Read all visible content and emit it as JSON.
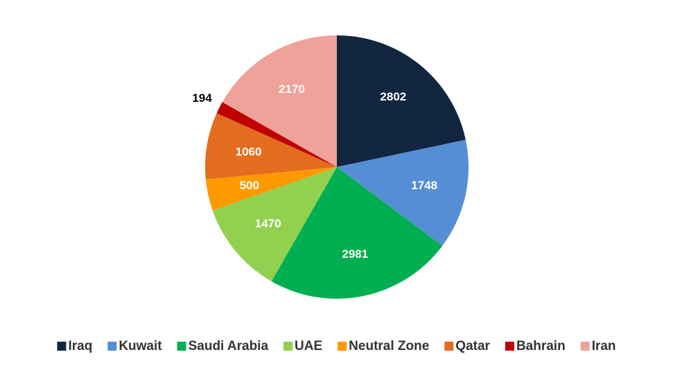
{
  "chart_data": {
    "type": "pie",
    "categories": [
      "Iraq",
      "Kuwait",
      "Saudi Arabia",
      "UAE",
      "Neutral Zone",
      "Qatar",
      "Bahrain",
      "Iran"
    ],
    "values": [
      2802,
      1748,
      2981,
      1470,
      500,
      1060,
      194,
      2170
    ],
    "colors": [
      "#12263f",
      "#558ed5",
      "#00b050",
      "#92d050",
      "#ff9900",
      "#e46c1f",
      "#c00000",
      "#eea29a"
    ],
    "legend": "bottom"
  }
}
